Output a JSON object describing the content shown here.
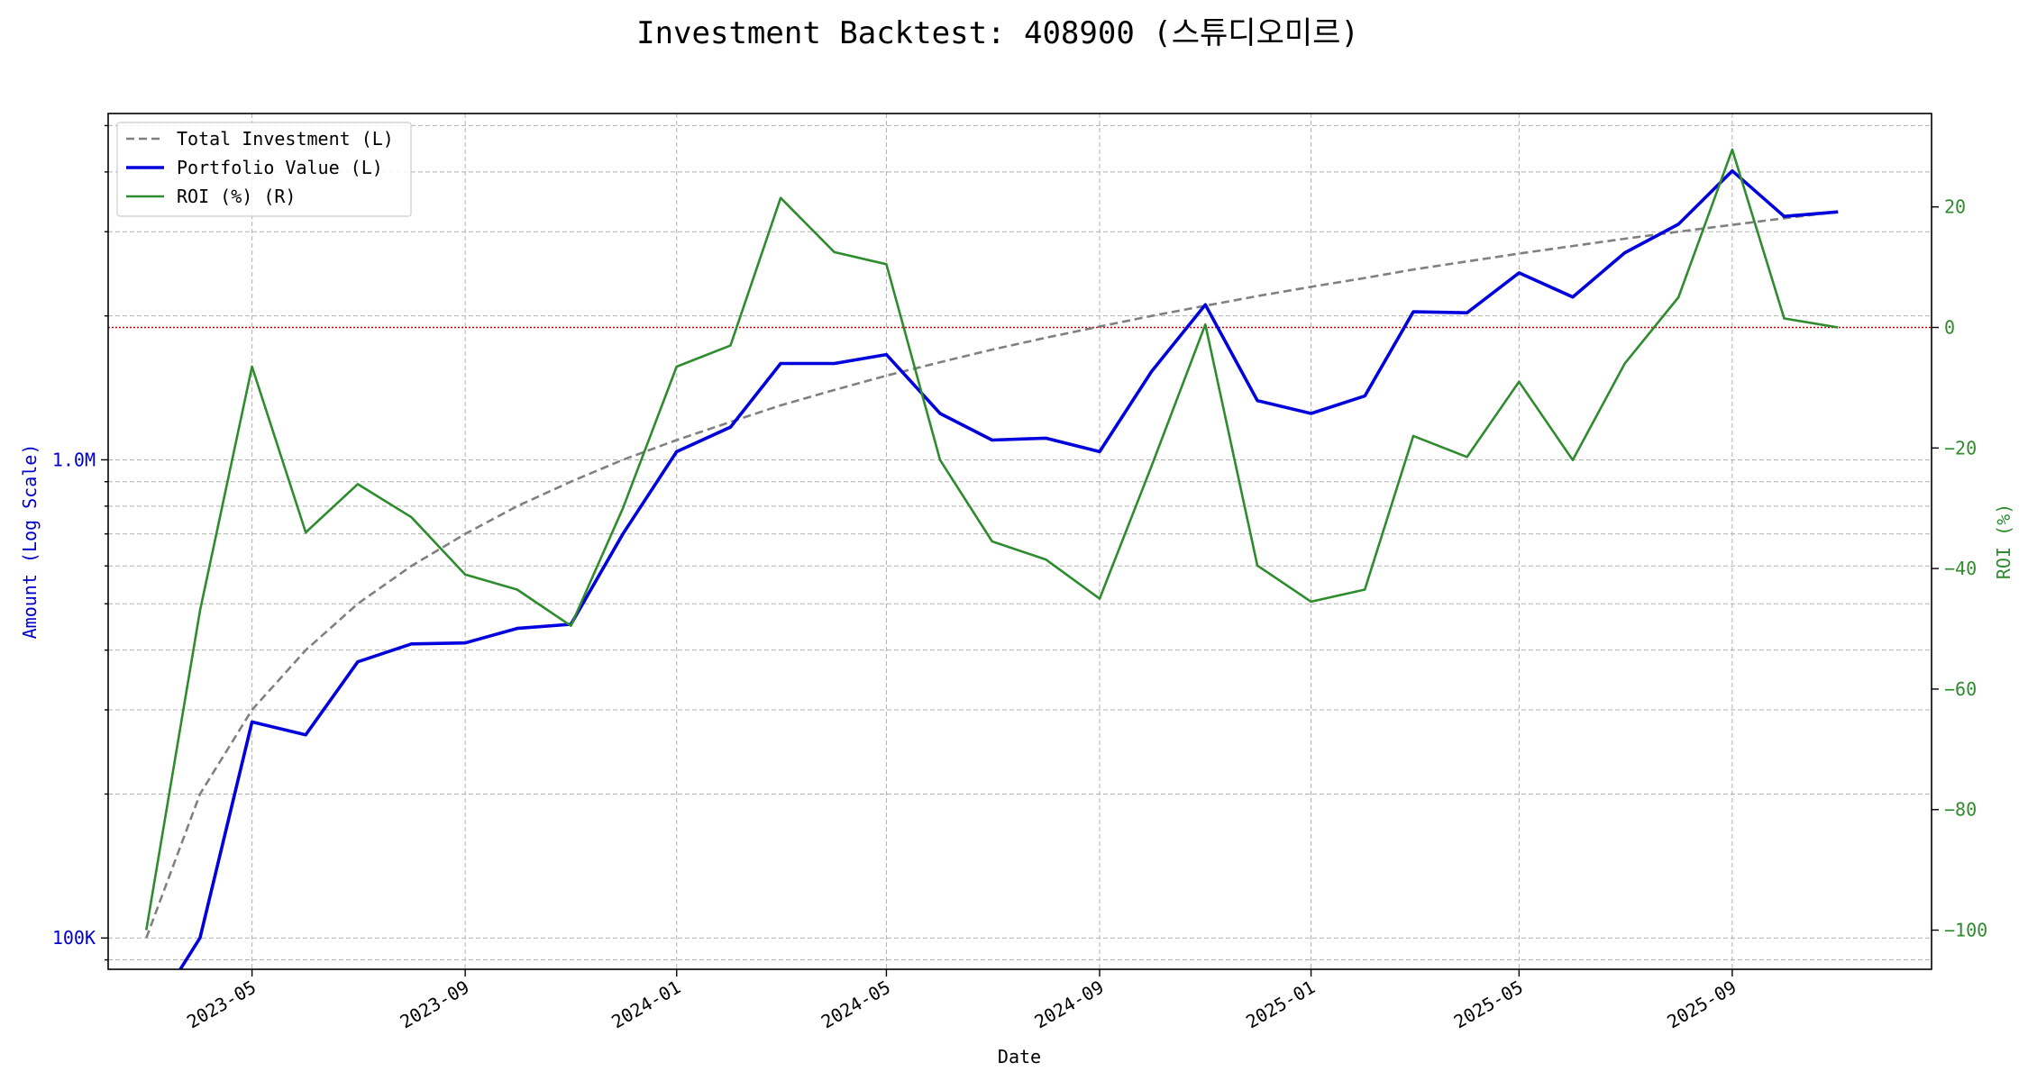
{
  "chart_data": {
    "type": "line",
    "title": "Investment Backtest: 408900 (스튜디오미르)",
    "xlabel": "Date",
    "ylabel_left": "Amount (Log Scale)",
    "ylabel_right": "ROI (%)",
    "left_scale": "log",
    "ylim_left": [
      86000,
      5300000
    ],
    "ylim_right": [
      -106.5,
      35.5
    ],
    "xlim": [
      "2023-02-07",
      "2025-12-25"
    ],
    "grid": true,
    "legend": "upper-left",
    "zero_line_color": "#cc0000",
    "x": [
      "2023-03-01",
      "2023-04-01",
      "2023-05-01",
      "2023-06-01",
      "2023-07-01",
      "2023-08-01",
      "2023-09-01",
      "2023-10-01",
      "2023-11-01",
      "2023-12-01",
      "2024-01-01",
      "2024-02-01",
      "2024-03-01",
      "2024-04-01",
      "2024-05-01",
      "2024-06-01",
      "2024-07-01",
      "2024-08-01",
      "2024-09-01",
      "2024-10-01",
      "2024-11-01",
      "2024-12-01",
      "2025-01-01",
      "2025-02-01",
      "2025-03-01",
      "2025-04-01",
      "2025-05-01",
      "2025-06-01",
      "2025-07-01",
      "2025-08-01",
      "2025-09-01",
      "2025-10-01",
      "2025-11-01"
    ],
    "series": [
      {
        "name": "Total Investment (L)",
        "axis": "left",
        "color": "#808080",
        "style": "dashed",
        "values": [
          100000,
          200000,
          300000,
          400000,
          500000,
          600000,
          700000,
          800000,
          900000,
          1000000,
          1100000,
          1200000,
          1300000,
          1400000,
          1500000,
          1600000,
          1700000,
          1800000,
          1900000,
          2000000,
          2100000,
          2200000,
          2300000,
          2400000,
          2500000,
          2600000,
          2700000,
          2800000,
          2900000,
          3000000,
          3100000,
          3200000,
          3300000
        ]
      },
      {
        "name": "Portfolio Value (L)",
        "axis": "left",
        "color": "#0000dd",
        "style": "solid-thick",
        "values": [
          0,
          100000,
          283000,
          266000,
          378000,
          412000,
          414000,
          444000,
          453000,
          700000,
          1040000,
          1170000,
          1590000,
          1590000,
          1660000,
          1250000,
          1100000,
          1110000,
          1040000,
          1530000,
          2110000,
          1330000,
          1250000,
          1360000,
          2040000,
          2030000,
          2460000,
          2190000,
          2710000,
          3110000,
          4020000,
          3230000,
          3300000
        ]
      },
      {
        "name": "ROI (%) (R)",
        "axis": "right",
        "color": "#2e8b2e",
        "style": "solid",
        "values": [
          -100,
          -47,
          -6.5,
          -34,
          -26,
          -31.5,
          -41,
          -43.5,
          -49.5,
          -30,
          -6.5,
          -3,
          21.5,
          12.5,
          10.5,
          -22,
          -35.5,
          -38.5,
          -45,
          -23,
          0.5,
          -39.5,
          -45.5,
          -43.5,
          -18,
          -21.5,
          -9,
          -22,
          -6,
          5,
          29.5,
          1.5,
          0
        ]
      }
    ],
    "left_ticks": [
      {
        "value": 100000,
        "label": "100K"
      },
      {
        "value": 1000000,
        "label": "1.0M"
      }
    ],
    "right_ticks": [
      {
        "value": 20,
        "label": "20"
      },
      {
        "value": 0,
        "label": "0"
      },
      {
        "value": -20,
        "label": "−20"
      },
      {
        "value": -40,
        "label": "−40"
      },
      {
        "value": -60,
        "label": "−60"
      },
      {
        "value": -80,
        "label": "−80"
      },
      {
        "value": -100,
        "label": "−100"
      }
    ],
    "x_ticks": [
      {
        "date": "2023-05-01",
        "label": "2023-05"
      },
      {
        "date": "2023-09-01",
        "label": "2023-09"
      },
      {
        "date": "2024-01-01",
        "label": "2024-01"
      },
      {
        "date": "2024-05-01",
        "label": "2024-05"
      },
      {
        "date": "2024-09-01",
        "label": "2024-09"
      },
      {
        "date": "2025-01-01",
        "label": "2025-01"
      },
      {
        "date": "2025-05-01",
        "label": "2025-05"
      },
      {
        "date": "2025-09-01",
        "label": "2025-09"
      }
    ]
  }
}
